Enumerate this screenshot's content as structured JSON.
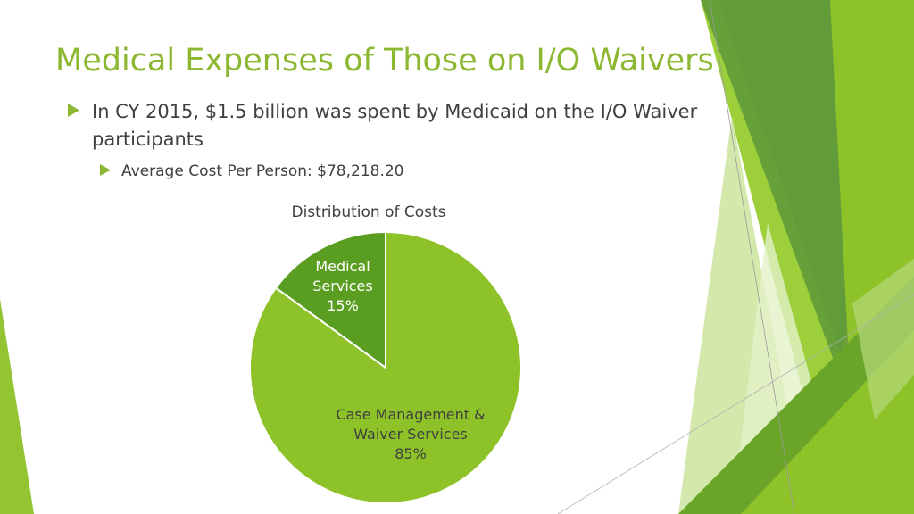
{
  "title": "Medical Expenses of Those on I/O Waivers",
  "bullets": [
    {
      "text": "In CY 2015, $1.5 billion was spent by Medicaid on the I/O Waiver participants"
    },
    {
      "text": "Average Cost Per Person: $78,218.20"
    }
  ],
  "icons": {
    "bullet": "triangle-right-icon"
  },
  "colors": {
    "accent": "#8bb830",
    "slice_case_management": "#8dc228",
    "slice_medical": "#5a9e21",
    "body_text": "#404040"
  },
  "chart_data": {
    "type": "pie",
    "title": "Distribution of Costs",
    "slices": [
      {
        "label": "Medical Services",
        "value": 15,
        "percent_label": "15%",
        "label_lines": [
          "Medical",
          "Services",
          "15%"
        ]
      },
      {
        "label": "Case Management & Waiver Services",
        "value": 85,
        "percent_label": "85%",
        "label_lines": [
          "Case Management &",
          "Waiver Services",
          "85%"
        ]
      }
    ]
  }
}
